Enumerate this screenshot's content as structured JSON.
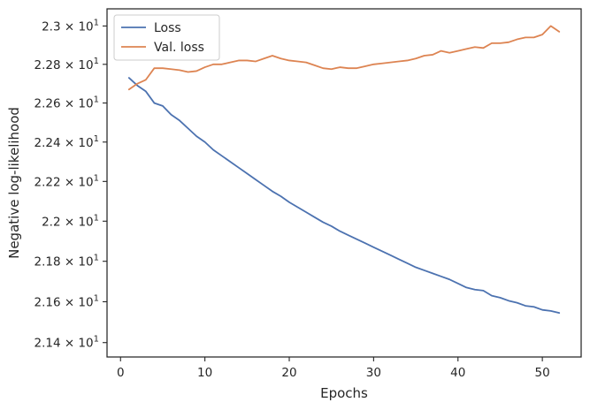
{
  "chart_data": {
    "type": "line",
    "xlabel": "Epochs",
    "ylabel": "Negative log-likelihood",
    "xlim": [
      -1.6,
      54.6
    ],
    "ylim": [
      21.33,
      23.09
    ],
    "y_scale": "log",
    "grid": false,
    "legend_position": "top-left",
    "x_ticks": [
      0,
      10,
      20,
      30,
      40,
      50
    ],
    "x_tick_labels": [
      "0",
      "10",
      "20",
      "30",
      "40",
      "50"
    ],
    "y_ticks": [
      21.4,
      21.6,
      21.8,
      22.0,
      22.2,
      22.4,
      22.6,
      22.8,
      23.0
    ],
    "y_tick_labels": [
      {
        "mantissa": "2.14",
        "base": "10",
        "exp": "1"
      },
      {
        "mantissa": "2.16",
        "base": "10",
        "exp": "1"
      },
      {
        "mantissa": "2.18",
        "base": "10",
        "exp": "1"
      },
      {
        "mantissa": "2.2",
        "base": "10",
        "exp": "1"
      },
      {
        "mantissa": "2.22",
        "base": "10",
        "exp": "1"
      },
      {
        "mantissa": "2.24",
        "base": "10",
        "exp": "1"
      },
      {
        "mantissa": "2.26",
        "base": "10",
        "exp": "1"
      },
      {
        "mantissa": "2.28",
        "base": "10",
        "exp": "1"
      },
      {
        "mantissa": "2.3",
        "base": "10",
        "exp": "1"
      }
    ],
    "x": [
      1,
      2,
      3,
      4,
      5,
      6,
      7,
      8,
      9,
      10,
      11,
      12,
      13,
      14,
      15,
      16,
      17,
      18,
      19,
      20,
      21,
      22,
      23,
      24,
      25,
      26,
      27,
      28,
      29,
      30,
      31,
      32,
      33,
      34,
      35,
      36,
      37,
      38,
      39,
      40,
      41,
      42,
      43,
      44,
      45,
      46,
      47,
      48,
      49,
      50,
      51,
      52
    ],
    "series": [
      {
        "name": "Loss",
        "color": "#4c72b0",
        "values": [
          22.73,
          22.69,
          22.66,
          22.6,
          22.585,
          22.54,
          22.51,
          22.47,
          22.43,
          22.4,
          22.36,
          22.33,
          22.3,
          22.27,
          22.24,
          22.21,
          22.18,
          22.15,
          22.125,
          22.095,
          22.07,
          22.045,
          22.02,
          21.995,
          21.975,
          21.95,
          21.93,
          21.91,
          21.89,
          21.87,
          21.85,
          21.83,
          21.81,
          21.79,
          21.77,
          21.755,
          21.74,
          21.725,
          21.71,
          21.69,
          21.67,
          21.66,
          21.655,
          21.63,
          21.62,
          21.605,
          21.595,
          21.58,
          21.575,
          21.56,
          21.555,
          21.545
        ]
      },
      {
        "name": "Val. loss",
        "color": "#dd8452",
        "values": [
          22.67,
          22.7,
          22.72,
          22.78,
          22.78,
          22.775,
          22.77,
          22.76,
          22.765,
          22.785,
          22.8,
          22.8,
          22.81,
          22.82,
          22.82,
          22.815,
          22.83,
          22.845,
          22.83,
          22.82,
          22.815,
          22.81,
          22.795,
          22.78,
          22.775,
          22.785,
          22.78,
          22.78,
          22.79,
          22.8,
          22.805,
          22.81,
          22.815,
          22.82,
          22.83,
          22.845,
          22.85,
          22.87,
          22.86,
          22.87,
          22.88,
          22.89,
          22.885,
          22.91,
          22.91,
          22.915,
          22.93,
          22.94,
          22.94,
          22.955,
          23.0,
          22.97
        ]
      }
    ]
  }
}
